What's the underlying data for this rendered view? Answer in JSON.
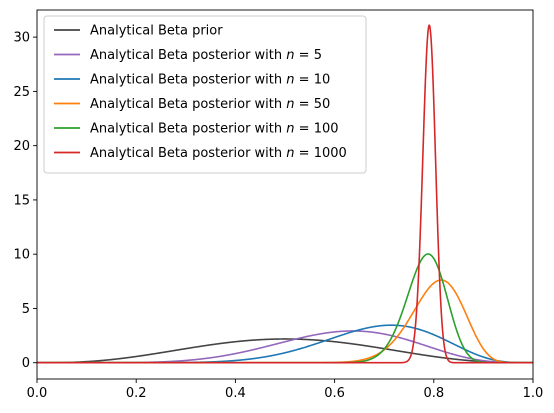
{
  "chart_data": {
    "type": "line",
    "title": "",
    "xlabel": "",
    "ylabel": "",
    "xlim": [
      0,
      1
    ],
    "ylim": [
      -1.5,
      32.5
    ],
    "grid": false,
    "legend_position": "top-left",
    "x_ticks": [
      0,
      0.2,
      0.4,
      0.6,
      0.8,
      1
    ],
    "x_tick_labels": [
      "0.0",
      "0.2",
      "0.4",
      "0.6",
      "0.8",
      "1.0"
    ],
    "y_ticks": [
      0,
      5,
      10,
      15,
      20,
      25,
      30
    ],
    "y_tick_labels": [
      "0",
      "5",
      "10",
      "15",
      "20",
      "25",
      "30"
    ],
    "series": [
      {
        "name": "Analytical Beta prior",
        "legend_prefix": "Analytical Beta prior",
        "legend_n": "",
        "color": "#444444",
        "alpha": 4,
        "beta": 4
      },
      {
        "name": "Analytical Beta posterior with n = 5",
        "legend_prefix": "Analytical Beta posterior with ",
        "legend_n": "5",
        "color": "#9467bd",
        "alpha": 8,
        "beta": 5
      },
      {
        "name": "Analytical Beta posterior with n = 10",
        "legend_prefix": "Analytical Beta posterior with ",
        "legend_n": "10",
        "color": "#1f77b4",
        "alpha": 11,
        "beta": 5
      },
      {
        "name": "Analytical Beta posterior with n = 50",
        "legend_prefix": "Analytical Beta posterior with ",
        "legend_n": "50",
        "color": "#ff7f0e",
        "alpha": 45,
        "beta": 11
      },
      {
        "name": "Analytical Beta posterior with n = 100",
        "legend_prefix": "Analytical Beta posterior with ",
        "legend_n": "100",
        "color": "#2ca02c",
        "alpha": 83,
        "beta": 23
      },
      {
        "name": "Analytical Beta posterior with n = 1000",
        "legend_prefix": "Analytical Beta posterior with ",
        "legend_n": "1000",
        "color": "#d62728",
        "alpha": 795,
        "beta": 211
      }
    ]
  }
}
